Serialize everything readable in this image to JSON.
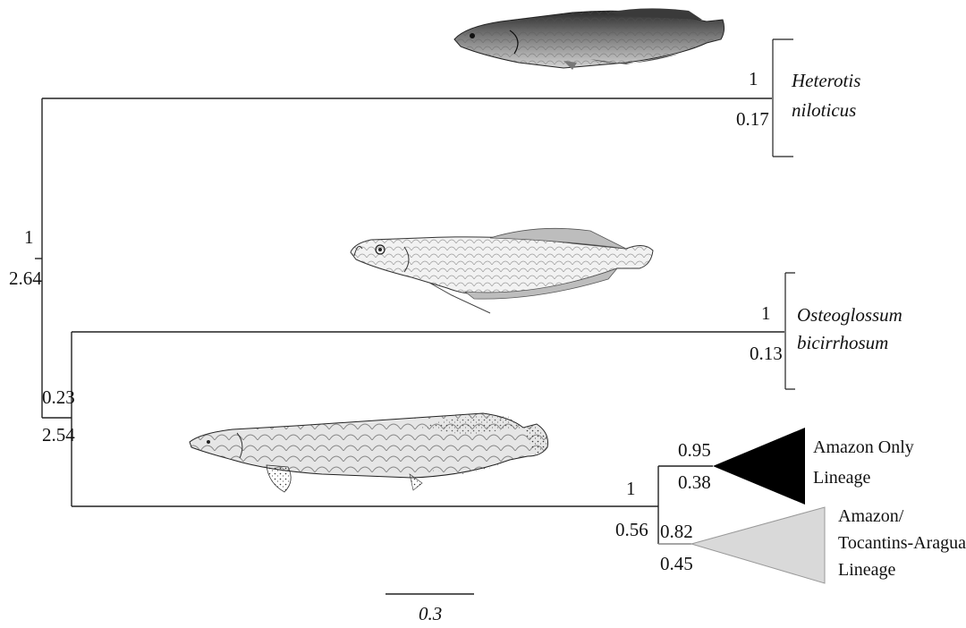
{
  "tree": {
    "root_node": {
      "support": "1",
      "length": "2.64"
    },
    "osteoglossinae_node": {
      "support": "0.23",
      "length": "2.54"
    },
    "heterotis": {
      "support": "1",
      "length": "0.17",
      "name_line1": "Heterotis",
      "name_line2": "niloticus"
    },
    "osteoglossum": {
      "support": "1",
      "length": "0.13",
      "name_line1": "Osteoglossum",
      "name_line2": "bicirrhosum"
    },
    "arapaima_node": {
      "support": "1",
      "length": "0.56"
    },
    "amazon_only": {
      "support": "0.95",
      "length": "0.38",
      "label_line1": "Amazon Only",
      "label_line2": "Lineage",
      "color": "#000000"
    },
    "amazon_tocantins": {
      "support": "0.82",
      "length": "0.45",
      "label_line1": "Amazon/",
      "label_line2": "Tocantins-Araguaia",
      "label_line3": "Lineage",
      "color": "#d9d9d9"
    }
  },
  "scale_bar": {
    "label": "0.3"
  },
  "illustrations": [
    "heterotis-fish",
    "arowana-fish",
    "arapaima-fish"
  ]
}
